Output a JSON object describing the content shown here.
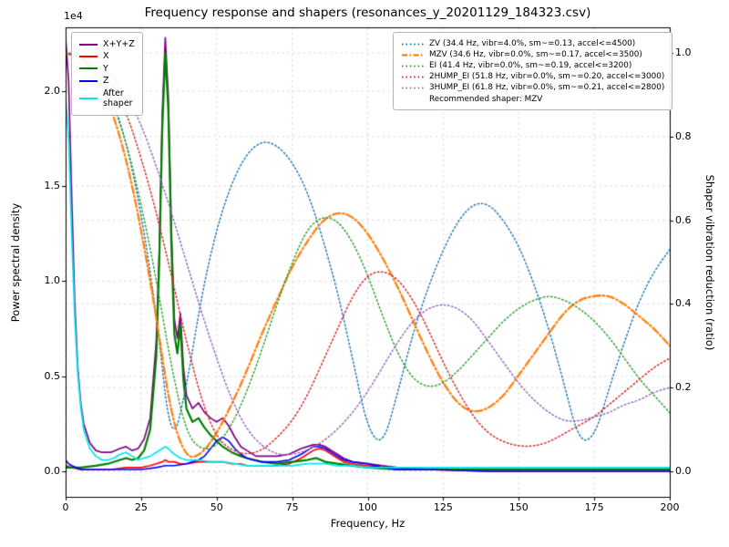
{
  "chart_data": {
    "type": "line",
    "title": "Frequency response and shapers (resonances_y_20201129_184323.csv)",
    "xlabel": "Frequency, Hz",
    "ylabel": "Power spectral density",
    "ylabel2": "Shaper vibration reduction (ratio)",
    "y_offset_factor": "1e4",
    "grid": true,
    "xlim": [
      0,
      200
    ],
    "x_ticks": [
      0,
      25,
      50,
      75,
      100,
      125,
      150,
      175,
      200
    ],
    "ylim_left": [
      -0.134,
      2.335
    ],
    "y_ticks_left": [
      0.0,
      0.5,
      1.0,
      1.5,
      2.0
    ],
    "ylim_right": [
      -0.061,
      1.061
    ],
    "y_ticks_right": [
      0.0,
      0.2,
      0.4,
      0.6,
      0.8,
      1.0
    ],
    "psd_units": "1e4",
    "psd_series": [
      {
        "name": "X+Y+Z",
        "color": "#800080",
        "width": 1.7,
        "x": [
          0,
          1,
          2,
          3,
          4,
          5,
          6,
          8,
          10,
          12,
          15,
          18,
          20,
          22,
          24,
          26,
          28,
          30,
          31,
          32,
          33,
          34,
          35,
          36,
          37,
          38,
          39,
          40,
          42,
          44,
          46,
          48,
          50,
          52,
          54,
          56,
          58,
          60,
          63,
          66,
          70,
          74,
          78,
          80,
          82,
          84,
          86,
          88,
          90,
          92,
          95,
          100,
          105,
          110,
          120,
          140,
          160,
          180,
          200
        ],
        "y": [
          2.28,
          2.05,
          1.45,
          0.9,
          0.55,
          0.36,
          0.25,
          0.15,
          0.11,
          0.1,
          0.1,
          0.12,
          0.13,
          0.11,
          0.12,
          0.17,
          0.28,
          0.68,
          1.15,
          1.88,
          2.28,
          1.97,
          1.28,
          0.8,
          0.7,
          0.83,
          0.55,
          0.4,
          0.33,
          0.36,
          0.31,
          0.28,
          0.26,
          0.28,
          0.24,
          0.18,
          0.13,
          0.11,
          0.08,
          0.08,
          0.08,
          0.09,
          0.12,
          0.13,
          0.14,
          0.14,
          0.13,
          0.11,
          0.09,
          0.07,
          0.05,
          0.04,
          0.03,
          0.02,
          0.01,
          0.01,
          0.01,
          0.01,
          0.01
        ]
      },
      {
        "name": "X",
        "color": "#ff0000",
        "width": 1.6,
        "x": [
          0,
          2,
          5,
          10,
          15,
          20,
          25,
          28,
          30,
          32,
          33,
          34,
          36,
          38,
          40,
          44,
          48,
          50,
          52,
          55,
          58,
          60,
          65,
          70,
          74,
          78,
          80,
          82,
          84,
          86,
          88,
          90,
          92,
          95,
          100,
          105,
          110,
          120,
          140,
          160,
          180,
          200
        ],
        "y": [
          0.03,
          0.02,
          0.01,
          0.01,
          0.01,
          0.02,
          0.02,
          0.03,
          0.04,
          0.05,
          0.06,
          0.05,
          0.05,
          0.04,
          0.04,
          0.05,
          0.05,
          0.05,
          0.05,
          0.04,
          0.04,
          0.03,
          0.03,
          0.03,
          0.04,
          0.07,
          0.09,
          0.11,
          0.12,
          0.11,
          0.09,
          0.07,
          0.05,
          0.04,
          0.03,
          0.02,
          0.01,
          0.01,
          0.0,
          0.0,
          0.0,
          0.0
        ]
      },
      {
        "name": "Y",
        "color": "#008000",
        "width": 2.2,
        "x": [
          0,
          5,
          10,
          14,
          18,
          20,
          22,
          24,
          26,
          28,
          30,
          31,
          32,
          33,
          34,
          35,
          36,
          37,
          38,
          39,
          40,
          42,
          44,
          46,
          48,
          50,
          52,
          55,
          58,
          60,
          65,
          70,
          75,
          80,
          83,
          86,
          90,
          95,
          100,
          110,
          120,
          140,
          160,
          180,
          200
        ],
        "y": [
          0.02,
          0.02,
          0.03,
          0.04,
          0.06,
          0.07,
          0.06,
          0.07,
          0.11,
          0.22,
          0.6,
          1.1,
          1.8,
          2.2,
          1.9,
          1.2,
          0.72,
          0.62,
          0.77,
          0.48,
          0.33,
          0.26,
          0.28,
          0.23,
          0.19,
          0.16,
          0.13,
          0.1,
          0.08,
          0.07,
          0.05,
          0.04,
          0.05,
          0.06,
          0.07,
          0.05,
          0.04,
          0.03,
          0.02,
          0.01,
          0.01,
          0.01,
          0.01,
          0.01,
          0.01
        ]
      },
      {
        "name": "Z",
        "color": "#0000ff",
        "width": 1.6,
        "x": [
          0,
          1,
          2,
          5,
          10,
          15,
          20,
          25,
          30,
          33,
          36,
          40,
          42,
          44,
          46,
          48,
          50,
          52,
          54,
          56,
          58,
          60,
          62,
          65,
          70,
          74,
          78,
          80,
          82,
          84,
          86,
          88,
          90,
          92,
          95,
          100,
          105,
          110,
          120,
          140,
          160,
          180,
          200
        ],
        "y": [
          0.06,
          0.04,
          0.03,
          0.01,
          0.01,
          0.01,
          0.01,
          0.01,
          0.02,
          0.03,
          0.03,
          0.04,
          0.05,
          0.06,
          0.08,
          0.12,
          0.16,
          0.18,
          0.16,
          0.12,
          0.09,
          0.07,
          0.06,
          0.05,
          0.05,
          0.06,
          0.09,
          0.11,
          0.13,
          0.13,
          0.12,
          0.1,
          0.08,
          0.06,
          0.05,
          0.04,
          0.02,
          0.01,
          0.01,
          0.0,
          0.0,
          0.0,
          0.0
        ]
      },
      {
        "name": "After shaper",
        "color": "#00e5ee",
        "width": 1.7,
        "x": [
          0,
          1,
          2,
          3,
          4,
          5,
          6,
          8,
          10,
          12,
          14,
          16,
          18,
          20,
          22,
          24,
          26,
          28,
          30,
          32,
          33,
          34,
          36,
          38,
          40,
          44,
          48,
          52,
          56,
          60,
          65,
          70,
          75,
          80,
          83,
          86,
          90,
          95,
          100,
          110,
          120,
          140,
          160,
          180,
          200
        ],
        "y": [
          1.97,
          1.75,
          1.25,
          0.82,
          0.52,
          0.34,
          0.22,
          0.12,
          0.08,
          0.06,
          0.06,
          0.07,
          0.09,
          0.1,
          0.08,
          0.06,
          0.07,
          0.08,
          0.1,
          0.12,
          0.13,
          0.12,
          0.09,
          0.07,
          0.06,
          0.06,
          0.05,
          0.05,
          0.04,
          0.03,
          0.03,
          0.03,
          0.03,
          0.04,
          0.04,
          0.04,
          0.03,
          0.03,
          0.02,
          0.02,
          0.02,
          0.02,
          0.02,
          0.02,
          0.02
        ]
      }
    ],
    "shaper_series": [
      {
        "name": "ZV",
        "freq_hz": 34.4,
        "color": "#1f77b4",
        "style": "dotted",
        "width": 1.5,
        "x_start": 0,
        "x_step": 5,
        "y": [
          1.0,
          0.99,
          0.96,
          0.9,
          0.79,
          0.62,
          0.38,
          0.05,
          0.2,
          0.42,
          0.58,
          0.69,
          0.76,
          0.79,
          0.78,
          0.74,
          0.67,
          0.56,
          0.43,
          0.27,
          0.1,
          0.06,
          0.19,
          0.33,
          0.44,
          0.53,
          0.6,
          0.64,
          0.64,
          0.6,
          0.54,
          0.45,
          0.34,
          0.21,
          0.07,
          0.08,
          0.2,
          0.31,
          0.41,
          0.48,
          0.53
        ]
      },
      {
        "name": "MZV",
        "freq_hz": 34.6,
        "color": "#ff7f0e",
        "style": "dashdot",
        "width": 2.3,
        "x_start": 0,
        "x_step": 5,
        "y": [
          1.0,
          0.99,
          0.95,
          0.87,
          0.75,
          0.58,
          0.37,
          0.13,
          0.03,
          0.04,
          0.09,
          0.16,
          0.24,
          0.33,
          0.41,
          0.49,
          0.55,
          0.6,
          0.62,
          0.61,
          0.57,
          0.51,
          0.44,
          0.36,
          0.28,
          0.21,
          0.16,
          0.14,
          0.15,
          0.18,
          0.23,
          0.28,
          0.33,
          0.38,
          0.41,
          0.42,
          0.42,
          0.4,
          0.37,
          0.34,
          0.3
        ]
      },
      {
        "name": "EI",
        "freq_hz": 41.4,
        "color": "#2ca02c",
        "style": "dotted",
        "width": 1.5,
        "x_start": 0,
        "x_step": 5,
        "y": [
          1.0,
          0.99,
          0.96,
          0.89,
          0.79,
          0.64,
          0.46,
          0.25,
          0.09,
          0.05,
          0.06,
          0.11,
          0.19,
          0.29,
          0.4,
          0.5,
          0.58,
          0.61,
          0.6,
          0.55,
          0.47,
          0.37,
          0.28,
          0.22,
          0.2,
          0.21,
          0.24,
          0.28,
          0.32,
          0.36,
          0.39,
          0.41,
          0.42,
          0.41,
          0.39,
          0.36,
          0.32,
          0.27,
          0.22,
          0.18,
          0.14
        ]
      },
      {
        "name": "2HUMP_EI",
        "freq_hz": 51.8,
        "color": "#d62728",
        "style": "dotted",
        "width": 1.5,
        "x_start": 0,
        "x_step": 5,
        "y": [
          1.0,
          0.99,
          0.97,
          0.93,
          0.86,
          0.75,
          0.62,
          0.47,
          0.31,
          0.17,
          0.08,
          0.05,
          0.04,
          0.05,
          0.08,
          0.12,
          0.18,
          0.26,
          0.34,
          0.42,
          0.47,
          0.48,
          0.46,
          0.41,
          0.34,
          0.26,
          0.19,
          0.13,
          0.09,
          0.07,
          0.06,
          0.06,
          0.07,
          0.09,
          0.11,
          0.13,
          0.16,
          0.19,
          0.22,
          0.25,
          0.27
        ]
      },
      {
        "name": "3HUMP_EI",
        "freq_hz": 61.8,
        "color": "#9467bd",
        "style": "dotted",
        "width": 1.5,
        "x_start": 0,
        "x_step": 5,
        "y": [
          1.0,
          1.0,
          0.98,
          0.95,
          0.9,
          0.83,
          0.73,
          0.62,
          0.5,
          0.38,
          0.27,
          0.17,
          0.1,
          0.06,
          0.04,
          0.04,
          0.05,
          0.07,
          0.1,
          0.14,
          0.19,
          0.25,
          0.31,
          0.36,
          0.39,
          0.4,
          0.39,
          0.36,
          0.31,
          0.26,
          0.21,
          0.17,
          0.14,
          0.12,
          0.12,
          0.13,
          0.14,
          0.16,
          0.17,
          0.19,
          0.2
        ]
      }
    ]
  },
  "legends": {
    "psd": {
      "items": [
        {
          "label": "X+Y+Z",
          "color": "#800080",
          "style": "solid"
        },
        {
          "label": "X",
          "color": "#ff0000",
          "style": "solid"
        },
        {
          "label": "Y",
          "color": "#008000",
          "style": "solid"
        },
        {
          "label": "Z",
          "color": "#0000ff",
          "style": "solid"
        },
        {
          "label": "After\nshaper",
          "color": "#00e5ee",
          "style": "solid"
        }
      ]
    },
    "shapers": {
      "items": [
        {
          "label": "ZV (34.4 Hz, vibr=4.0%, sm~=0.13, accel<=4500)",
          "color": "#1f77b4",
          "style": "dotted"
        },
        {
          "label": "MZV (34.6 Hz, vibr=0.0%, sm~=0.17, accel<=3500)",
          "color": "#ff7f0e",
          "style": "dashdot"
        },
        {
          "label": "EI (41.4 Hz, vibr=0.0%, sm~=0.19, accel<=3200)",
          "color": "#2ca02c",
          "style": "dotted"
        },
        {
          "label": "2HUMP_EI (51.8 Hz, vibr=0.0%, sm~=0.20, accel<=3000)",
          "color": "#d62728",
          "style": "dotted"
        },
        {
          "label": "3HUMP_EI (61.8 Hz, vibr=0.0%, sm~=0.21, accel<=2800)",
          "color": "#9467bd",
          "style": "dotted"
        }
      ],
      "note": "Recommended shaper: MZV"
    }
  }
}
